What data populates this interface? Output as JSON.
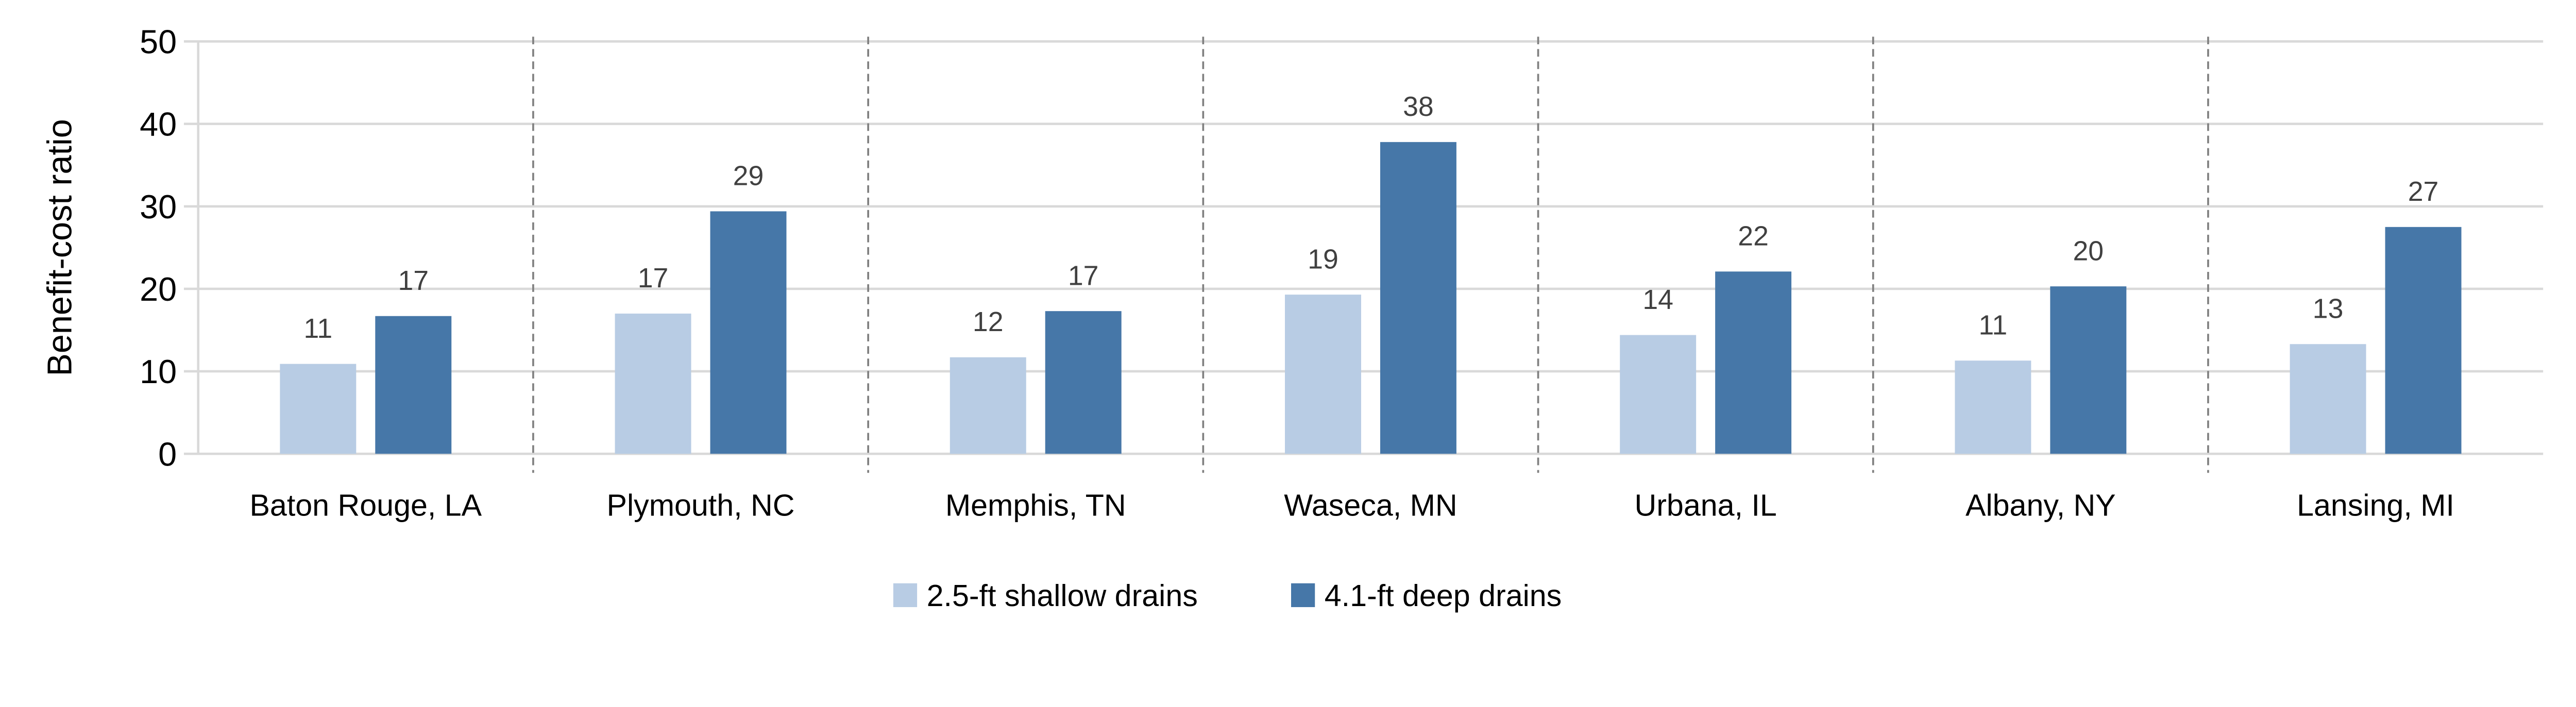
{
  "chart_data": {
    "type": "bar",
    "title": "",
    "xlabel": "",
    "ylabel": "Benefit-cost ratio",
    "ylim": [
      0,
      50
    ],
    "yticks": [
      0,
      10,
      20,
      30,
      40,
      50
    ],
    "grid": true,
    "legend_position": "bottom",
    "categories": [
      "Baton Rouge, LA",
      "Plymouth, NC",
      "Memphis, TN",
      "Waseca, MN",
      "Urbana, IL",
      "Albany, NY",
      "Lansing, MI"
    ],
    "series": [
      {
        "name": "2.5-ft shallow drains",
        "color": "#B8CCE4",
        "values": [
          10.9,
          17.0,
          11.7,
          19.3,
          14.4,
          11.3,
          13.3
        ],
        "labels": [
          "11",
          "17",
          "12",
          "19",
          "14",
          "11",
          "13"
        ]
      },
      {
        "name": "4.1-ft deep drains",
        "color": "#4677A8",
        "values": [
          16.7,
          29.4,
          17.3,
          37.8,
          22.1,
          20.3,
          27.5
        ],
        "labels": [
          "17",
          "29",
          "17",
          "38",
          "22",
          "20",
          "27"
        ]
      }
    ]
  }
}
